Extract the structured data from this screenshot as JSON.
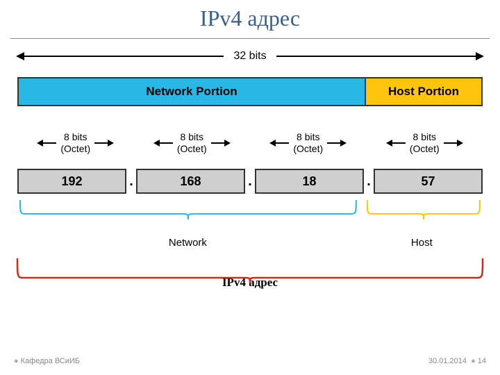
{
  "title": "IPv4 адрес",
  "total_bits_label": "32 bits",
  "portions": [
    {
      "label": "Network Portion",
      "flex": 3,
      "bg": "#29b8e6"
    },
    {
      "label": "Host Portion",
      "flex": 1,
      "bg": "#ffc40d"
    }
  ],
  "octet_caption_line1": "8 bits",
  "octet_caption_line2": "(Octet)",
  "octets": [
    "192",
    "168",
    "18",
    "57"
  ],
  "octet_bg": "#cfcfcf",
  "dot": ".",
  "bracket_network": {
    "label": "Network",
    "color": "#29b8e6",
    "span_ratio": 0.74
  },
  "bracket_host": {
    "label": "Host",
    "color": "#ffc40d",
    "span_ratio": 0.26
  },
  "big_bracket": {
    "label": "IPv4 адрес",
    "color": "#cc2a1e"
  },
  "footer_left": "Кафедра ВСиИБ",
  "footer_date": "30.01.2014",
  "footer_page": "14"
}
